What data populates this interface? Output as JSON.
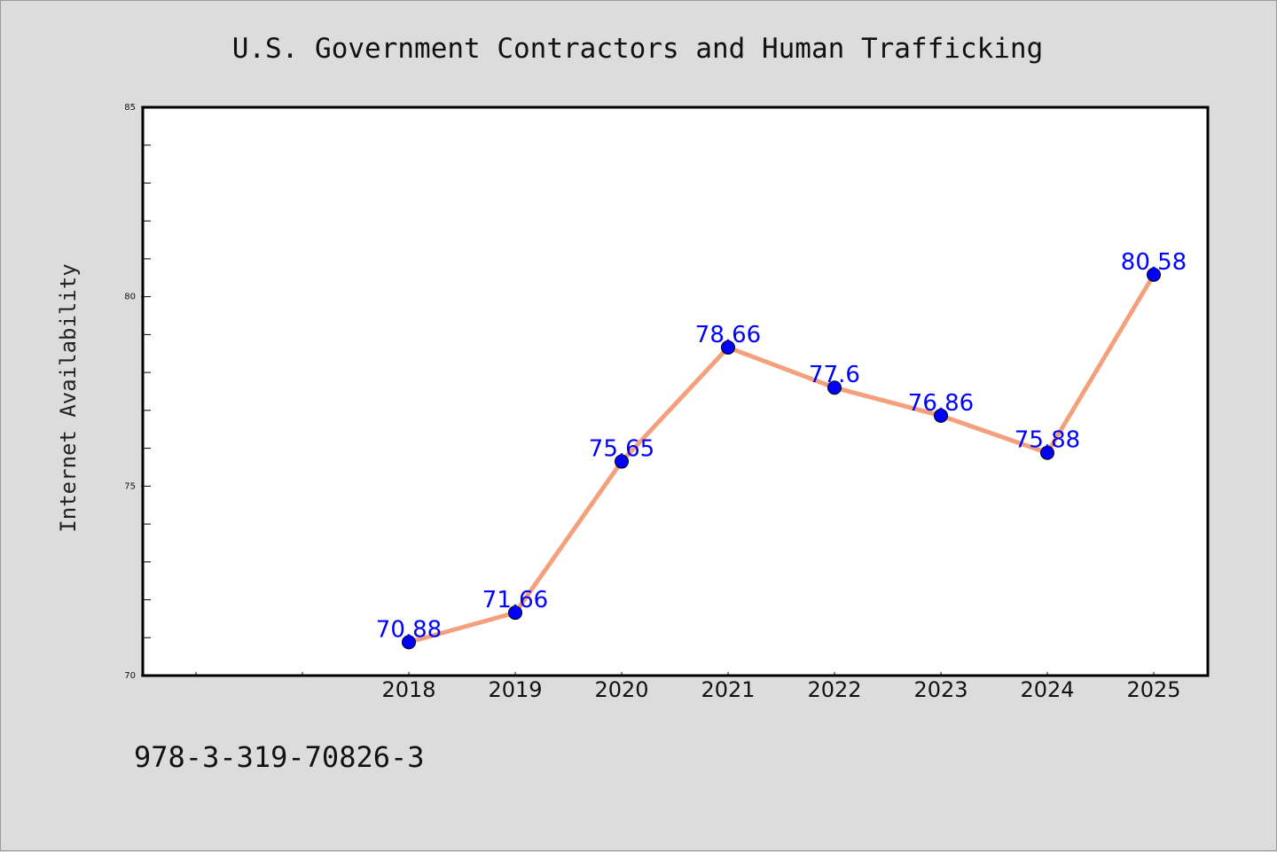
{
  "chart_data": {
    "type": "line",
    "title": "U.S. Government Contractors and Human Trafficking",
    "xlabel": "",
    "ylabel": "Internet Availability",
    "categories": [
      "2018",
      "2019",
      "2020",
      "2021",
      "2022",
      "2023",
      "2024",
      "2025"
    ],
    "series": [
      {
        "values": [
          70.88,
          71.66,
          75.65,
          78.66,
          77.6,
          76.86,
          75.88,
          80.58
        ],
        "data_labels": [
          "70.88",
          "71.66",
          "75.65",
          "78.66",
          "77.6",
          "76.86",
          "75.88",
          "80.58"
        ]
      }
    ],
    "ylim": [
      70,
      85
    ],
    "yticks": [
      "70",
      "75",
      "80",
      "85"
    ],
    "grid": false,
    "legend": "none",
    "colors": {
      "line": "#f4a07c",
      "marker": "#0000ff",
      "data_label": "#0000ff",
      "plot_background": "#ffffff",
      "figure_background": "#dcdcdc"
    }
  },
  "footer": {
    "isbn": "978-3-319-70826-3"
  }
}
